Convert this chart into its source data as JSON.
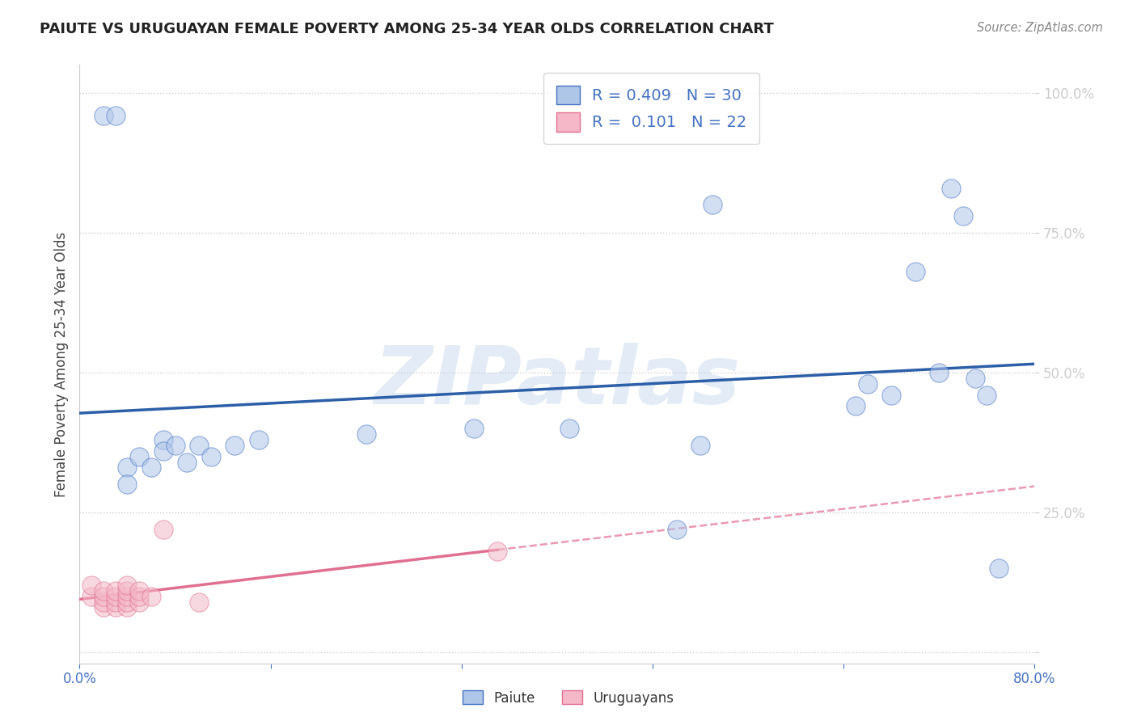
{
  "title": "PAIUTE VS URUGUAYAN FEMALE POVERTY AMONG 25-34 YEAR OLDS CORRELATION CHART",
  "source": "Source: ZipAtlas.com",
  "ylabel": "Female Poverty Among 25-34 Year Olds",
  "xlim": [
    0.0,
    0.8
  ],
  "ylim": [
    -0.02,
    1.05
  ],
  "xticks": [
    0.0,
    0.16,
    0.32,
    0.48,
    0.64,
    0.8
  ],
  "xticklabels": [
    "0.0%",
    "",
    "",
    "",
    "",
    "80.0%"
  ],
  "ytick_positions": [
    0.0,
    0.25,
    0.5,
    0.75,
    1.0
  ],
  "ytick_labels": [
    "",
    "25.0%",
    "50.0%",
    "75.0%",
    "100.0%"
  ],
  "paiute_x": [
    0.02,
    0.03,
    0.04,
    0.04,
    0.05,
    0.06,
    0.07,
    0.07,
    0.08,
    0.09,
    0.1,
    0.11,
    0.13,
    0.15,
    0.24,
    0.33,
    0.41,
    0.5,
    0.52,
    0.53,
    0.65,
    0.66,
    0.68,
    0.7,
    0.72,
    0.73,
    0.74,
    0.75,
    0.76,
    0.77
  ],
  "paiute_y": [
    0.96,
    0.96,
    0.33,
    0.3,
    0.35,
    0.33,
    0.38,
    0.36,
    0.37,
    0.34,
    0.37,
    0.35,
    0.37,
    0.38,
    0.39,
    0.4,
    0.4,
    0.22,
    0.37,
    0.8,
    0.44,
    0.48,
    0.46,
    0.68,
    0.5,
    0.83,
    0.78,
    0.49,
    0.46,
    0.15
  ],
  "uruguayan_x": [
    0.01,
    0.01,
    0.02,
    0.02,
    0.02,
    0.02,
    0.03,
    0.03,
    0.03,
    0.03,
    0.04,
    0.04,
    0.04,
    0.04,
    0.04,
    0.05,
    0.05,
    0.05,
    0.06,
    0.07,
    0.1,
    0.35
  ],
  "uruguayan_y": [
    0.1,
    0.12,
    0.08,
    0.09,
    0.1,
    0.11,
    0.08,
    0.09,
    0.1,
    0.11,
    0.08,
    0.09,
    0.1,
    0.11,
    0.12,
    0.09,
    0.1,
    0.11,
    0.1,
    0.22,
    0.09,
    0.18
  ],
  "paiute_R": 0.409,
  "paiute_N": 30,
  "uruguayan_R": 0.101,
  "uruguayan_N": 22,
  "paiute_fill_color": "#aec6e8",
  "paiute_edge_color": "#4472c4",
  "uruguayan_fill_color": "#f4b8c8",
  "uruguayan_edge_color": "#e07090",
  "paiute_line_color": "#2c5fa8",
  "uruguayan_line_color": "#e07090",
  "watermark": "ZIPatlas",
  "background_color": "#ffffff",
  "grid_color": "#cccccc"
}
